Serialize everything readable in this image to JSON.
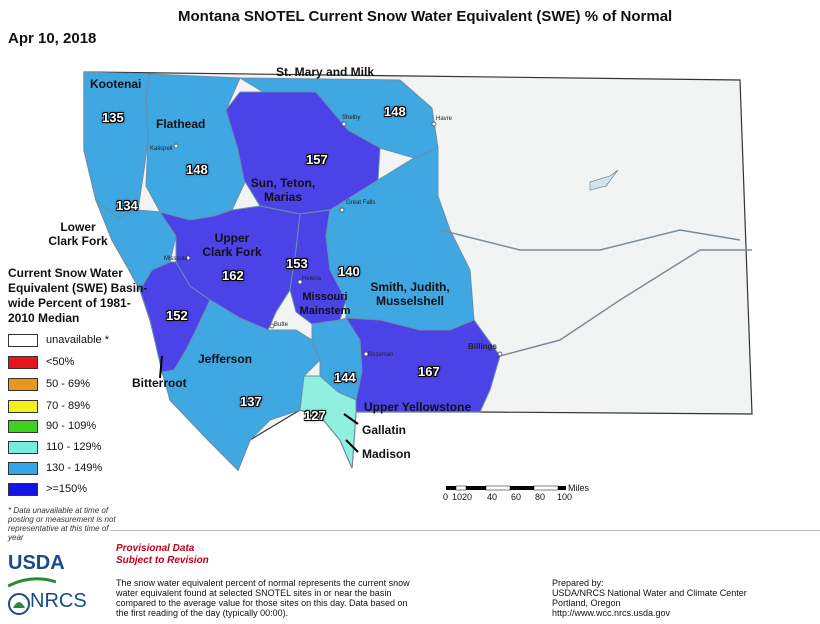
{
  "title": "Montana SNOTEL Current Snow Water Equivalent (SWE) % of Normal",
  "date": "Apr 10, 2018",
  "basins": [
    {
      "name": "Kootenai",
      "value": "135",
      "class": "130 - 149%"
    },
    {
      "name": "Flathead",
      "value": "148",
      "class": "130 - 149%"
    },
    {
      "name": "St. Mary and Milk",
      "value": "148",
      "class": "130 - 149%"
    },
    {
      "name": "Sun, Teton, Marias",
      "value": "157",
      "class": ">=150%"
    },
    {
      "name": "Lower Clark Fork",
      "value": "134",
      "class": "130 - 149%"
    },
    {
      "name": "Upper Clark Fork",
      "value": "162",
      "class": ">=150%"
    },
    {
      "name": "Missouri Mainstem",
      "value": "153",
      "class": ">=150%"
    },
    {
      "name": "Smith, Judith, Musselshell",
      "value": "140",
      "class": "130 - 149%"
    },
    {
      "name": "Bitterroot",
      "value": "152",
      "class": ">=150%"
    },
    {
      "name": "Jefferson",
      "value": "137",
      "class": "130 - 149%"
    },
    {
      "name": "Gallatin",
      "value": "144",
      "class": "130 - 149%"
    },
    {
      "name": "Madison",
      "value": "127",
      "class": "110 - 129%"
    },
    {
      "name": "Upper Yellowstone",
      "value": "167",
      "class": ">=150%"
    }
  ],
  "cities": [
    "Shelby",
    "Havre",
    "Kalispell",
    "Great Falls",
    "Missoula",
    "Helena",
    "Butte",
    "Bozeman",
    "Billings"
  ],
  "legend": {
    "title": "Current Snow Water Equivalent (SWE) Basin-wide Percent of 1981-2010 Median",
    "items": [
      {
        "label": "unavailable *",
        "color": "#ffffff"
      },
      {
        "label": "<50%",
        "color": "#e8141c"
      },
      {
        "label": "50 - 69%",
        "color": "#e8961c"
      },
      {
        "label": "70 - 89%",
        "color": "#f0f01c"
      },
      {
        "label": "90 - 109%",
        "color": "#3cd21e"
      },
      {
        "label": "110 - 129%",
        "color": "#78ecdc"
      },
      {
        "label": "130 - 149%",
        "color": "#32a6e6"
      },
      {
        "label": ">=150%",
        "color": "#1414e6"
      }
    ]
  },
  "footnote": "* Data unavailable at time of posting or measurement is not representative at this time of year",
  "scale": {
    "unit": "Miles",
    "ticks": [
      "0",
      "10",
      "20",
      "40",
      "60",
      "80",
      "100"
    ]
  },
  "provisional": [
    "Provisional Data",
    "Subject to Revision"
  ],
  "description": "The snow water equivalent percent of normal represents the current snow water equivalent found at selected SNOTEL sites in or near the basin compared to the average value for those sites on this day. Data based on the first reading of the day (typically 00:00).",
  "prepared": [
    "Prepared by:",
    "USDA/NRCS National Water and Climate Center",
    "Portland, Oregon",
    "http://www.wcc.nrcs.usda.gov"
  ],
  "logos": {
    "usda": "USDA",
    "nrcs": "NRCS"
  },
  "colors": {
    "above150": "#4b43e8",
    "c130": "#3fa7e2",
    "c110": "#8ff0e0",
    "background_state": "#f2f4f4"
  }
}
